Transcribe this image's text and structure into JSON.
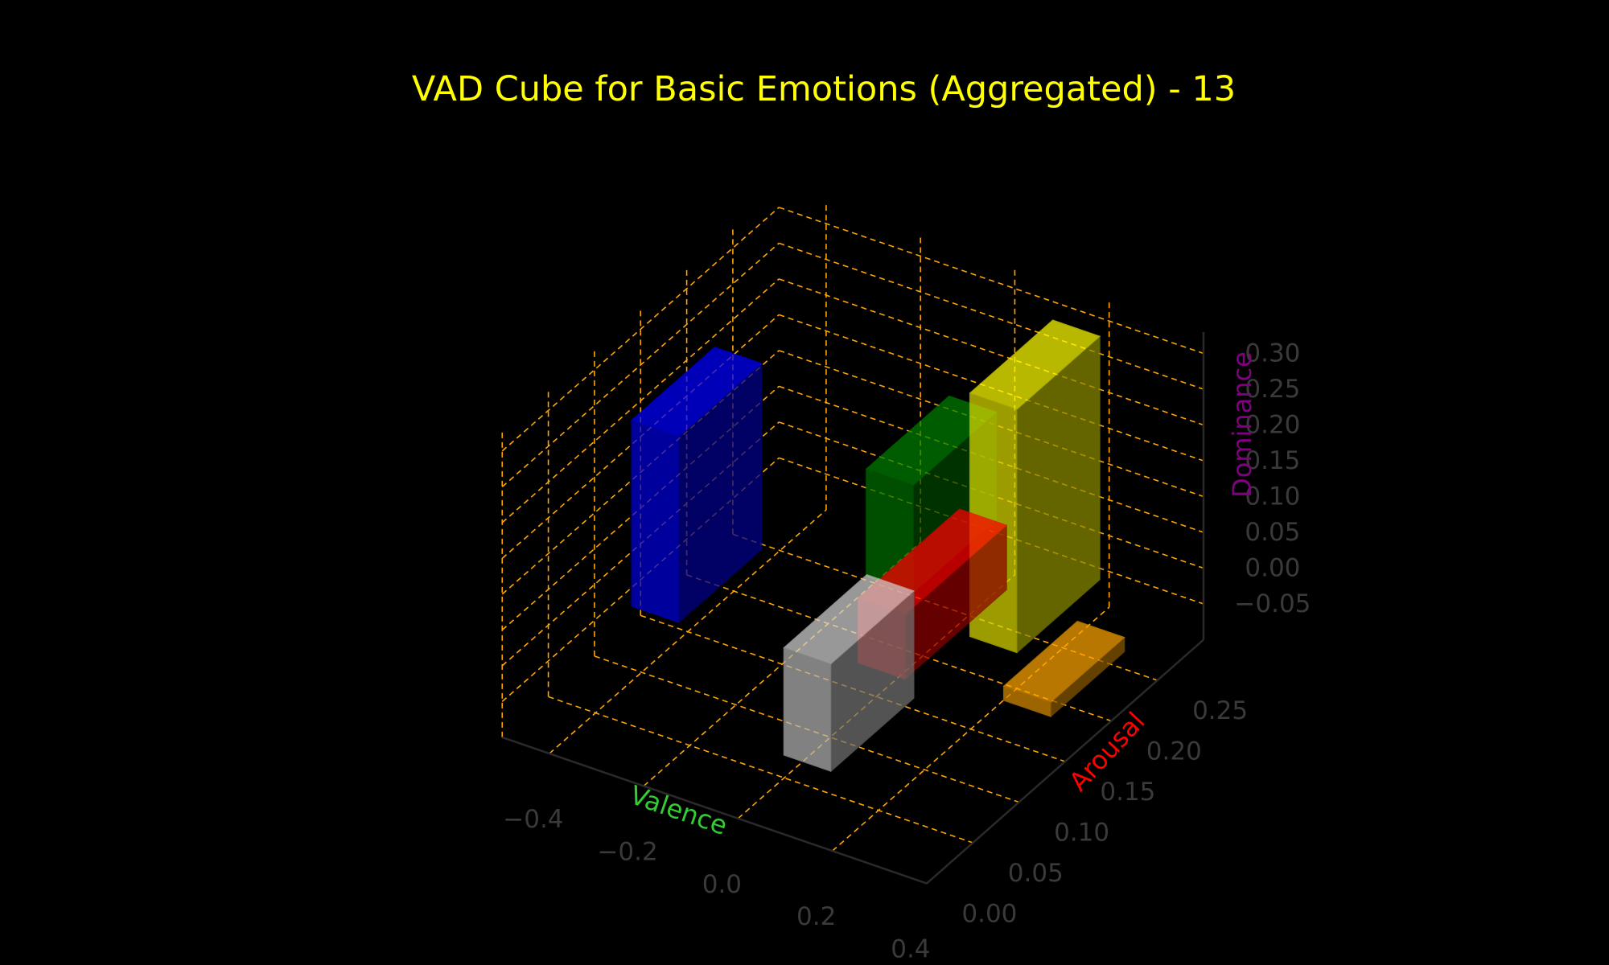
{
  "chart_data": {
    "type": "bar3d",
    "title": "VAD Cube for Basic Emotions (Aggregated) - 13",
    "xlabel": "Valence",
    "ylabel": "Arousal",
    "zlabel": "Dominance",
    "x_ticks": [
      "−0.4",
      "−0.2",
      "0.0",
      "0.2",
      "0.4"
    ],
    "y_ticks": [
      "0.00",
      "0.05",
      "0.10",
      "0.15",
      "0.20",
      "0.25"
    ],
    "z_ticks": [
      "−0.05",
      "0.00",
      "0.05",
      "0.10",
      "0.15",
      "0.20",
      "0.25",
      "0.30"
    ],
    "xlim": [
      -0.5,
      0.4
    ],
    "ylim": [
      0.0,
      0.3
    ],
    "zlim": [
      -0.1,
      0.33
    ],
    "grid": true,
    "colors": {
      "background": "#000000",
      "title": "#ffff00",
      "tick_label": "#3a3a3a",
      "grid": "#ffa500",
      "xlabel": "#32cd32",
      "ylabel": "#ff0000",
      "zlabel": "#800080"
    },
    "bars": [
      {
        "color": "#0000ff",
        "x": [
          -0.48,
          -0.38
        ],
        "y": [
          0.13,
          0.22
        ],
        "z": [
          -0.06,
          0.2
        ]
      },
      {
        "color": "#008000",
        "x": [
          -0.1,
          0.0
        ],
        "y": [
          0.19,
          0.28
        ],
        "z": [
          0.0,
          0.15
        ]
      },
      {
        "color": "#ff0000",
        "x": [
          0.0,
          0.1
        ],
        "y": [
          0.13,
          0.24
        ],
        "z": [
          -0.03,
          0.06
        ]
      },
      {
        "color": "#ffff00",
        "x": [
          0.1,
          0.2
        ],
        "y": [
          0.2,
          0.29
        ],
        "z": [
          -0.05,
          0.29
        ]
      },
      {
        "color": "#ffa500",
        "x": [
          0.25,
          0.35
        ],
        "y": [
          0.16,
          0.24
        ],
        "z": [
          -0.06,
          -0.04
        ]
      },
      {
        "color": "#d3d3d3",
        "x": [
          -0.04,
          0.06
        ],
        "y": [
          0.07,
          0.16
        ],
        "z": [
          -0.1,
          0.05
        ]
      }
    ]
  }
}
